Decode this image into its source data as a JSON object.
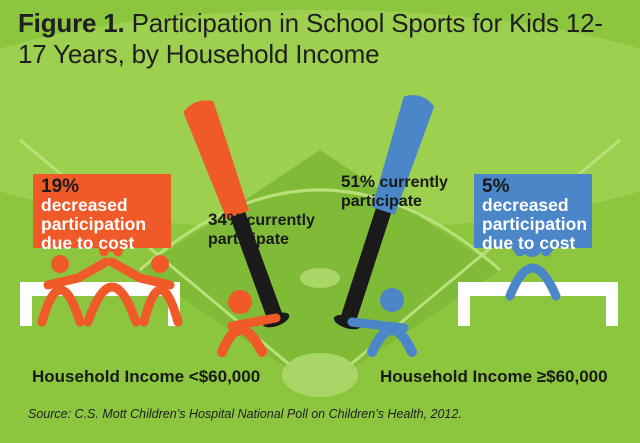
{
  "title": {
    "figure_label": "Figure 1.",
    "text": "Participation in School Sports for Kids 12-17 Years, by Household Income"
  },
  "colors": {
    "background": "#8cc63f",
    "orange": "#f05a28",
    "blue": "#4a86c8",
    "dark": "#1a1a1a"
  },
  "chart_data": {
    "type": "infographic",
    "title": "Participation in School Sports for Kids 12-17 Years, by Household Income",
    "groups": [
      {
        "name": "Household Income <$60,000",
        "color": "#f05a28",
        "currently_participate": {
          "value": 34,
          "label_pct": "34%",
          "label_text": "currently participate"
        },
        "decreased_due_to_cost": {
          "value": 19,
          "label_pct": "19%",
          "label_text": "decreased participation due to cost"
        }
      },
      {
        "name": "Household Income ≥$60,000",
        "color": "#4a86c8",
        "currently_participate": {
          "value": 51,
          "label_pct": "51%",
          "label_text": "currently participate"
        },
        "decreased_due_to_cost": {
          "value": 5,
          "label_pct": "5%",
          "label_text": "decreased participation due to cost"
        }
      }
    ],
    "source": "Source: C.S. Mott Children’s Hospital National Poll on Children’s Health, 2012."
  }
}
